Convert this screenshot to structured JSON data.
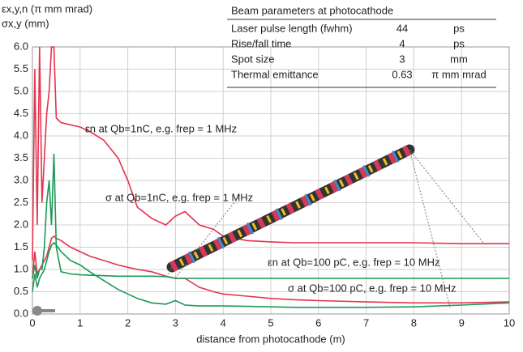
{
  "chart_data": {
    "type": "line",
    "y_label_lines": [
      "εx,y,n (π mm mrad)",
      "σx,y (mm)"
    ],
    "x_label": "distance from photocathode (m)",
    "xlim": [
      0,
      10
    ],
    "xticks": [
      0,
      1,
      2,
      3,
      4,
      5,
      6,
      7,
      8,
      9,
      10
    ],
    "ylim": [
      0,
      6
    ],
    "yticks": [
      {
        "value": 0,
        "label": "0.0"
      },
      {
        "value": 0.5,
        "label": "0.5"
      },
      {
        "value": 1,
        "label": "1.0"
      },
      {
        "value": 1.5,
        "label": "1.5"
      },
      {
        "value": 2,
        "label": "2.0"
      },
      {
        "value": 2.5,
        "label": "2.5"
      },
      {
        "value": 3,
        "label": "3.0"
      },
      {
        "value": 3.5,
        "label": "3.5"
      },
      {
        "value": 4,
        "label": "4.0"
      },
      {
        "value": 4.5,
        "label": "4.5"
      },
      {
        "value": 5,
        "label": "5.0"
      },
      {
        "value": 5.5,
        "label": "5.5"
      },
      {
        "value": 6,
        "label": "6.0"
      }
    ],
    "grid": true,
    "x": [
      0,
      0.05,
      0.1,
      0.15,
      0.2,
      0.25,
      0.3,
      0.35,
      0.4,
      0.45,
      0.5,
      0.6,
      0.8,
      1.0,
      1.2,
      1.5,
      1.8,
      2.0,
      2.2,
      2.5,
      2.8,
      3.0,
      3.2,
      3.5,
      3.8,
      4.0,
      4.5,
      5,
      5.5,
      6,
      7,
      8,
      9,
      10
    ],
    "series": [
      {
        "name": "εn at Qb=1nC, e.g. frep = 1 MHz",
        "color": "#e6334d",
        "values": [
          1.2,
          5.5,
          2.0,
          6.0,
          2.5,
          3.5,
          4.5,
          5.0,
          6.0,
          6.0,
          4.4,
          4.3,
          4.25,
          4.2,
          4.1,
          3.9,
          3.5,
          3.0,
          2.4,
          2.15,
          2.0,
          2.2,
          2.3,
          2.0,
          1.9,
          1.75,
          1.65,
          1.62,
          1.6,
          1.6,
          1.6,
          1.6,
          1.58,
          1.58
        ]
      },
      {
        "name": "σ at Qb=1nC, e.g. frep = 1 MHz",
        "color": "#e6334d",
        "values": [
          0.8,
          1.4,
          0.9,
          1.0,
          1.1,
          1.2,
          1.3,
          1.5,
          1.7,
          1.75,
          1.7,
          1.65,
          1.5,
          1.4,
          1.3,
          1.2,
          1.1,
          1.05,
          1.0,
          0.95,
          0.85,
          0.8,
          0.8,
          0.6,
          0.5,
          0.45,
          0.4,
          0.35,
          0.32,
          0.3,
          0.27,
          0.25,
          0.25,
          0.27
        ]
      },
      {
        "name": "εn at Qb=100 pC, e.g. frep = 10 MHz",
        "color": "#1a9a55",
        "values": [
          0.8,
          1.1,
          0.8,
          1.0,
          1.0,
          1.5,
          2.5,
          3.0,
          2.0,
          3.6,
          1.5,
          0.95,
          0.9,
          0.88,
          0.87,
          0.86,
          0.85,
          0.85,
          0.85,
          0.85,
          0.84,
          0.8,
          0.8,
          0.8,
          0.8,
          0.8,
          0.8,
          0.8,
          0.8,
          0.8,
          0.8,
          0.8,
          0.8,
          0.8
        ]
      },
      {
        "name": "σ at Qb=100 pC, e.g. frep = 10 MHz",
        "color": "#1a9a55",
        "values": [
          0.5,
          0.9,
          0.6,
          0.8,
          0.9,
          1.0,
          1.2,
          1.4,
          1.55,
          1.6,
          1.55,
          1.4,
          1.2,
          1.1,
          0.95,
          0.75,
          0.55,
          0.45,
          0.35,
          0.25,
          0.22,
          0.3,
          0.2,
          0.18,
          0.18,
          0.18,
          0.17,
          0.16,
          0.15,
          0.15,
          0.15,
          0.16,
          0.2,
          0.25
        ]
      }
    ],
    "table": {
      "title": "Beam parameters at photocathode",
      "rows": [
        [
          "Laser pulse length (fwhm)",
          "44",
          "ps"
        ],
        [
          "Rise/fall time",
          "4",
          "ps"
        ],
        [
          "Spot size",
          "3",
          "mm"
        ],
        [
          "Thermal emittance",
          "0.63",
          "π mm mrad"
        ]
      ]
    }
  }
}
